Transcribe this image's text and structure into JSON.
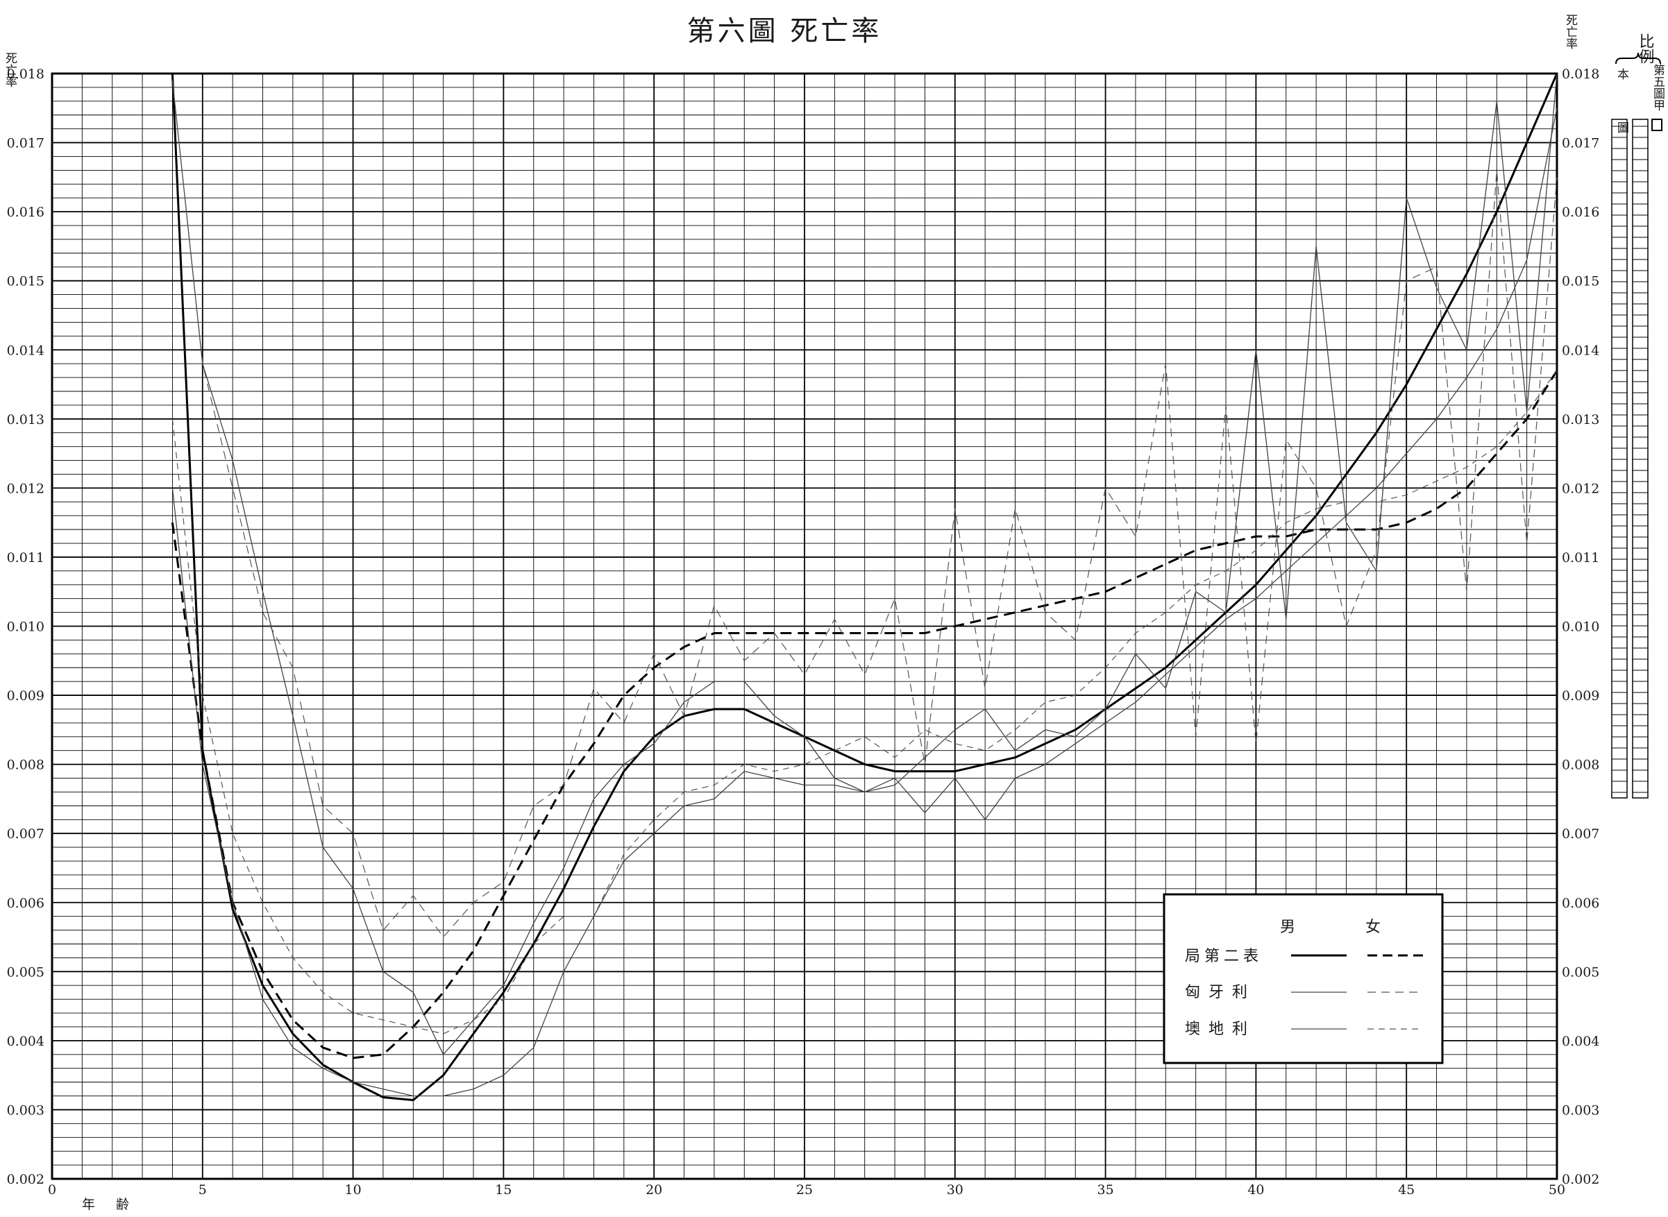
{
  "title": "第六圖 死亡率",
  "chart_data": {
    "type": "line",
    "title": "第六圖 死亡率",
    "xlabel": "年齢",
    "ylabel": "死亡率",
    "ylabel_right": "死亡率",
    "xlim": [
      0,
      50
    ],
    "ylim": [
      0.002,
      0.018
    ],
    "x_ticks": [
      "0",
      "5",
      "10",
      "15",
      "20",
      "25",
      "30",
      "35",
      "40",
      "45",
      "50"
    ],
    "y_ticks_left": [
      "0.002",
      "0.003",
      "0.004",
      "0.005",
      "0.006",
      "0.007",
      "0.008",
      "0.009",
      "0.010",
      "0.011",
      "0.012",
      "0.013",
      "0.014",
      "0.015",
      "0.016",
      "0.017",
      "0.018"
    ],
    "y_ticks_right": [
      "0.002",
      "0.003",
      "0.004",
      "0.005",
      "0.006",
      "0.007",
      "0.008",
      "0.009",
      "0.010",
      "0.011",
      "0.012",
      "0.013",
      "0.014",
      "0.015",
      "0.016",
      "0.017",
      "0.018"
    ],
    "grid": true,
    "legend": {
      "placement": "bottom-right",
      "headers": [
        "男",
        "女"
      ],
      "rows": [
        "局第二表",
        "匈牙利",
        "墺地利"
      ]
    },
    "series": [
      {
        "name": "局第二表 男",
        "color": "#000000",
        "width": 3,
        "dash": "",
        "x": [
          4,
          5,
          6,
          7,
          8,
          9,
          10,
          11,
          12,
          13,
          14,
          15,
          16,
          17,
          18,
          19,
          20,
          21,
          22,
          23,
          24,
          25,
          26,
          27,
          28,
          29,
          30,
          31,
          32,
          33,
          34,
          35,
          36,
          37,
          38,
          39,
          40,
          41,
          42,
          43,
          44,
          45,
          46,
          47,
          48,
          49,
          50
        ],
        "y": [
          0.018,
          0.0082,
          0.0059,
          0.0048,
          0.0041,
          0.00365,
          0.0034,
          0.00318,
          0.00314,
          0.0035,
          0.0041,
          0.0047,
          0.0054,
          0.0062,
          0.0071,
          0.0079,
          0.0084,
          0.0087,
          0.0088,
          0.0088,
          0.0086,
          0.0084,
          0.0082,
          0.008,
          0.0079,
          0.0079,
          0.0079,
          0.008,
          0.0081,
          0.0083,
          0.0085,
          0.0088,
          0.0091,
          0.0094,
          0.0098,
          0.0102,
          0.0106,
          0.0111,
          0.0116,
          0.0122,
          0.0128,
          0.0135,
          0.0143,
          0.0151,
          0.016,
          0.017,
          0.018
        ]
      },
      {
        "name": "局第二表 女",
        "color": "#000000",
        "width": 3,
        "dash": "16 9",
        "x": [
          4,
          5,
          6,
          7,
          8,
          9,
          10,
          11,
          12,
          13,
          14,
          15,
          16,
          17,
          18,
          19,
          20,
          21,
          22,
          23,
          24,
          25,
          26,
          27,
          28,
          29,
          30,
          31,
          32,
          33,
          34,
          35,
          36,
          37,
          38,
          39,
          40,
          41,
          42,
          43,
          44,
          45,
          46,
          47,
          48,
          49,
          50
        ],
        "y": [
          0.0115,
          0.0082,
          0.006,
          0.005,
          0.0043,
          0.0039,
          0.00375,
          0.0038,
          0.0042,
          0.0047,
          0.0053,
          0.0061,
          0.0069,
          0.0077,
          0.0083,
          0.009,
          0.0094,
          0.0097,
          0.0099,
          0.0099,
          0.0099,
          0.0099,
          0.0099,
          0.0099,
          0.0099,
          0.0099,
          0.01,
          0.0101,
          0.0102,
          0.0103,
          0.0104,
          0.0105,
          0.0107,
          0.0109,
          0.0111,
          0.0112,
          0.0113,
          0.0113,
          0.0114,
          0.0114,
          0.0114,
          0.0115,
          0.0117,
          0.012,
          0.0125,
          0.013,
          0.0137
        ]
      },
      {
        "name": "匈牙利 男",
        "color": "#444444",
        "width": 1.3,
        "dash": "",
        "x": [
          4,
          5,
          6,
          7,
          8,
          9,
          10,
          11,
          12,
          13,
          14,
          15,
          16,
          17,
          18,
          19,
          20,
          21,
          22,
          23,
          24,
          25,
          26,
          27,
          28,
          29,
          30,
          31,
          32,
          33,
          34,
          35,
          36,
          37,
          38,
          39,
          40,
          41,
          42,
          43,
          44,
          45,
          46,
          47,
          48,
          49,
          50
        ],
        "y": [
          0.0179,
          0.0138,
          0.0124,
          0.0105,
          0.0087,
          0.0068,
          0.0062,
          0.005,
          0.0047,
          0.0038,
          0.0043,
          0.0048,
          0.0057,
          0.0065,
          0.0075,
          0.008,
          0.0083,
          0.0089,
          0.0092,
          0.0092,
          0.0087,
          0.0084,
          0.0078,
          0.0076,
          0.0077,
          0.0081,
          0.0085,
          0.0088,
          0.0082,
          0.0085,
          0.0084,
          0.0088,
          0.0096,
          0.0091,
          0.0105,
          0.0102,
          0.014,
          0.0101,
          0.0155,
          0.0115,
          0.0108,
          0.0162,
          0.0149,
          0.014,
          0.0176,
          0.0131,
          0.018
        ]
      },
      {
        "name": "匈牙利 女",
        "color": "#555555",
        "width": 1.2,
        "dash": "12 8",
        "x": [
          4,
          5,
          6,
          7,
          8,
          9,
          10,
          11,
          12,
          13,
          14,
          15,
          16,
          17,
          18,
          19,
          20,
          21,
          22,
          23,
          24,
          25,
          26,
          27,
          28,
          29,
          30,
          31,
          32,
          33,
          34,
          35,
          36,
          37,
          38,
          39,
          40,
          41,
          42,
          43,
          44,
          45,
          46,
          47,
          48,
          49,
          50
        ],
        "y": [
          0.0179,
          0.0138,
          0.012,
          0.0102,
          0.0094,
          0.0074,
          0.007,
          0.0056,
          0.0061,
          0.0055,
          0.006,
          0.0063,
          0.0074,
          0.0077,
          0.0091,
          0.0086,
          0.0096,
          0.0087,
          0.0103,
          0.0095,
          0.0099,
          0.0093,
          0.0101,
          0.0093,
          0.0104,
          0.008,
          0.0117,
          0.0091,
          0.0117,
          0.0102,
          0.0098,
          0.012,
          0.0113,
          0.0138,
          0.0084,
          0.0132,
          0.0083,
          0.0127,
          0.012,
          0.01,
          0.0111,
          0.015,
          0.0152,
          0.0105,
          0.0166,
          0.0112,
          0.0165
        ]
      },
      {
        "name": "墺地利 男",
        "color": "#444444",
        "width": 1.3,
        "dash": "",
        "x": [
          4,
          5,
          6,
          7,
          8,
          9,
          10,
          11,
          12,
          13,
          14,
          15,
          16,
          17,
          18,
          19,
          20,
          21,
          22,
          23,
          24,
          25,
          26,
          27,
          28,
          29,
          30,
          31,
          32,
          33,
          34,
          35,
          36,
          37,
          38,
          39,
          40,
          41,
          42,
          43,
          44,
          45,
          46,
          47,
          48,
          49,
          50
        ],
        "y": [
          0.012,
          0.008,
          0.006,
          0.0046,
          0.0039,
          0.0036,
          0.0034,
          0.0033,
          0.0032,
          0.0032,
          0.0033,
          0.0035,
          0.0039,
          0.005,
          0.0058,
          0.0066,
          0.007,
          0.0074,
          0.0075,
          0.0079,
          0.0078,
          0.0077,
          0.0077,
          0.0076,
          0.0078,
          0.0073,
          0.0078,
          0.0072,
          0.0078,
          0.008,
          0.0083,
          0.0086,
          0.0089,
          0.0093,
          0.0097,
          0.0101,
          0.0104,
          0.0108,
          0.0112,
          0.0116,
          0.012,
          0.0125,
          0.013,
          0.0136,
          0.0143,
          0.0153,
          0.0175
        ]
      },
      {
        "name": "墺地利 女",
        "color": "#555555",
        "width": 1.2,
        "dash": "9 7",
        "x": [
          4,
          5,
          6,
          7,
          8,
          9,
          10,
          11,
          12,
          13,
          14,
          15,
          16,
          17,
          18,
          19,
          20,
          21,
          22,
          23,
          24,
          25,
          26,
          27,
          28,
          29,
          30,
          31,
          32,
          33,
          34,
          35,
          36,
          37,
          38,
          39,
          40,
          41,
          42,
          43,
          44,
          45,
          46,
          47,
          48,
          49,
          50
        ],
        "y": [
          0.013,
          0.009,
          0.007,
          0.006,
          0.0052,
          0.0047,
          0.0044,
          0.0043,
          0.0042,
          0.0041,
          0.0043,
          0.0046,
          0.0054,
          0.0058,
          0.0058,
          0.0067,
          0.0072,
          0.0076,
          0.0077,
          0.008,
          0.0079,
          0.008,
          0.0082,
          0.0084,
          0.0081,
          0.0085,
          0.0083,
          0.0082,
          0.0085,
          0.0089,
          0.009,
          0.0094,
          0.0099,
          0.0102,
          0.0106,
          0.0108,
          0.0111,
          0.0115,
          0.0117,
          0.0118,
          0.0118,
          0.0119,
          0.0121,
          0.0123,
          0.0126,
          0.0131,
          0.0137
        ]
      }
    ]
  },
  "scale_panel": {
    "title": "比例",
    "label_this": "本圖",
    "label_fifth": "第五圖甲"
  }
}
